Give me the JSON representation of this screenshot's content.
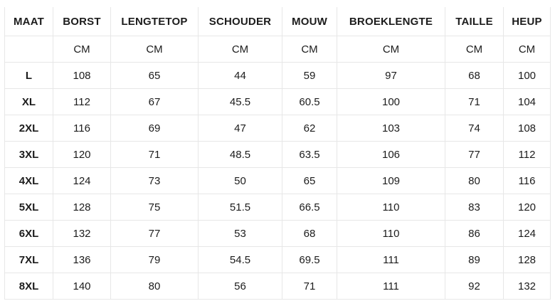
{
  "page": {
    "background_color": "#ffffff",
    "border_color": "#e7e7e7",
    "text_color": "#1c1c1c"
  },
  "chart_data": {
    "type": "table",
    "columns": [
      "MAAT",
      "BORST",
      "LENGTETOP",
      "SCHOUDER",
      "MOUW",
      "BROEKLENGTE",
      "TAILLE",
      "HEUP"
    ],
    "units_row": [
      "",
      "CM",
      "CM",
      "CM",
      "CM",
      "CM",
      "CM",
      "CM"
    ],
    "rows": [
      {
        "label": "L",
        "values": [
          108,
          65,
          44,
          59,
          97,
          68,
          100
        ]
      },
      {
        "label": "XL",
        "values": [
          112,
          67,
          45.5,
          60.5,
          100,
          71,
          104
        ]
      },
      {
        "label": "2XL",
        "values": [
          116,
          69,
          47,
          62,
          103,
          74,
          108
        ]
      },
      {
        "label": "3XL",
        "values": [
          120,
          71,
          48.5,
          63.5,
          106,
          77,
          112
        ]
      },
      {
        "label": "4XL",
        "values": [
          124,
          73,
          50,
          65,
          109,
          80,
          116
        ]
      },
      {
        "label": "5XL",
        "values": [
          128,
          75,
          51.5,
          66.5,
          110,
          83,
          120
        ]
      },
      {
        "label": "6XL",
        "values": [
          132,
          77,
          53,
          68,
          110,
          86,
          124
        ]
      },
      {
        "label": "7XL",
        "values": [
          136,
          79,
          54.5,
          69.5,
          111,
          89,
          128
        ]
      },
      {
        "label": "8XL",
        "values": [
          140,
          80,
          56,
          71,
          111,
          92,
          132
        ]
      }
    ],
    "layout": {
      "grid": true,
      "header_bold": true,
      "row_label_bold": true,
      "cell_alignment": "center"
    }
  }
}
